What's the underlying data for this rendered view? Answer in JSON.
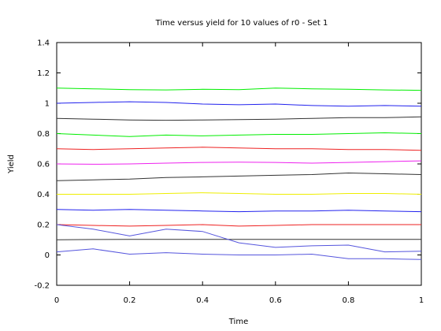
{
  "chart_data": {
    "type": "line",
    "title": "Time versus yield for 10 values of r0 - Set 1",
    "xlabel": "Time",
    "ylabel": "Yield",
    "xlim": [
      0,
      1
    ],
    "ylim": [
      -0.2,
      1.4
    ],
    "xticks": [
      "0",
      "0.2",
      "0.4",
      "0.6",
      "0.8",
      "1"
    ],
    "yticks": [
      "-0.2",
      "0",
      "0.2",
      "0.4",
      "0.6",
      "0.8",
      "1",
      "1.2",
      "1.4"
    ],
    "grid": false,
    "x": [
      0,
      0.1,
      0.2,
      0.3,
      0.4,
      0.5,
      0.6,
      0.7,
      0.8,
      0.9,
      1.0
    ],
    "series": [
      {
        "color": "#00ee00",
        "values": [
          1.1,
          1.095,
          1.09,
          1.088,
          1.092,
          1.09,
          1.1,
          1.095,
          1.092,
          1.088,
          1.085
        ]
      },
      {
        "color": "#2222ee",
        "values": [
          1.0,
          1.005,
          1.01,
          1.005,
          0.995,
          0.99,
          0.995,
          0.985,
          0.98,
          0.985,
          0.98
        ]
      },
      {
        "color": "#333333",
        "values": [
          0.9,
          0.895,
          0.89,
          0.888,
          0.89,
          0.892,
          0.895,
          0.9,
          0.905,
          0.905,
          0.91
        ]
      },
      {
        "color": "#00ee00",
        "values": [
          0.8,
          0.79,
          0.78,
          0.79,
          0.785,
          0.79,
          0.795,
          0.795,
          0.8,
          0.805,
          0.8
        ]
      },
      {
        "color": "#ee2222",
        "values": [
          0.7,
          0.695,
          0.7,
          0.705,
          0.71,
          0.705,
          0.7,
          0.7,
          0.695,
          0.695,
          0.69
        ]
      },
      {
        "color": "#ee22ee",
        "values": [
          0.6,
          0.598,
          0.6,
          0.605,
          0.61,
          0.612,
          0.61,
          0.605,
          0.61,
          0.615,
          0.62
        ]
      },
      {
        "color": "#333333",
        "values": [
          0.49,
          0.495,
          0.5,
          0.51,
          0.515,
          0.52,
          0.525,
          0.53,
          0.54,
          0.535,
          0.53
        ]
      },
      {
        "color": "#eeee00",
        "values": [
          0.4,
          0.4,
          0.4,
          0.405,
          0.41,
          0.405,
          0.4,
          0.4,
          0.405,
          0.405,
          0.4
        ]
      },
      {
        "color": "#2222ee",
        "values": [
          0.3,
          0.295,
          0.3,
          0.295,
          0.29,
          0.285,
          0.29,
          0.29,
          0.295,
          0.29,
          0.285
        ]
      },
      {
        "color": "#ee2222",
        "values": [
          0.2,
          0.195,
          0.19,
          0.195,
          0.2,
          0.19,
          0.195,
          0.2,
          0.2,
          0.2,
          0.2
        ]
      },
      {
        "color": "#333333",
        "values": [
          0.1,
          0.102,
          0.103,
          0.103,
          0.103,
          0.103,
          0.103,
          0.103,
          0.103,
          0.103,
          0.103
        ]
      },
      {
        "color": "#5555dd",
        "values": [
          0.2,
          0.17,
          0.125,
          0.17,
          0.155,
          0.08,
          0.05,
          0.06,
          0.065,
          0.02,
          0.025
        ]
      },
      {
        "color": "#5555dd",
        "values": [
          0.02,
          0.04,
          0.005,
          0.015,
          0.005,
          0.0,
          0.0,
          0.005,
          -0.025,
          -0.025,
          -0.03
        ]
      }
    ]
  }
}
